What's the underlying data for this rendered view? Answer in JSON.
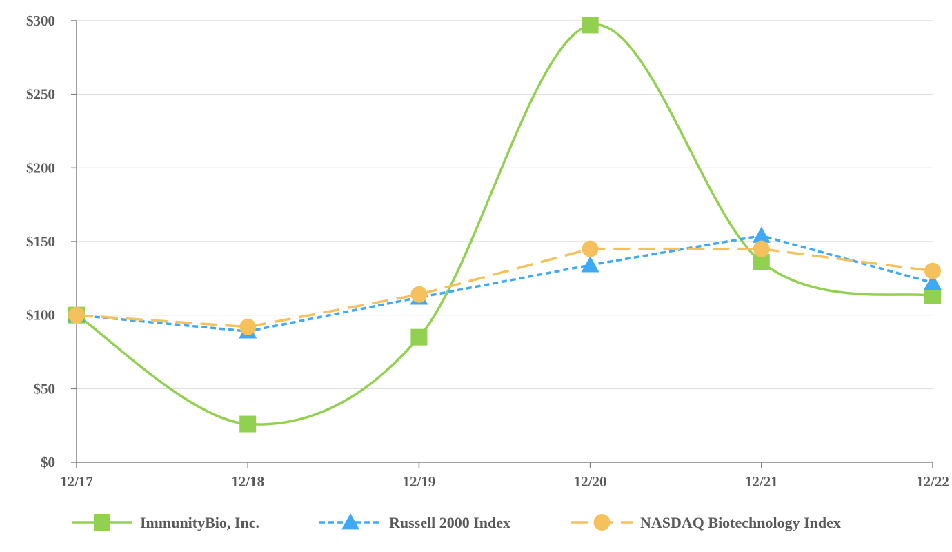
{
  "chart_data": {
    "type": "line",
    "title": "",
    "xlabel": "",
    "ylabel": "",
    "categories": [
      "12/17",
      "12/18",
      "12/19",
      "12/20",
      "12/21",
      "12/22"
    ],
    "y_tick_values": [
      0,
      50,
      100,
      150,
      200,
      250,
      300
    ],
    "y_tick_labels": [
      "$0",
      "$50",
      "$100",
      "$150",
      "$200",
      "$250",
      "$300"
    ],
    "ylim": [
      0,
      300
    ],
    "grid": "horizontal",
    "legend_position": "bottom",
    "series": [
      {
        "name": "ImmunityBio, Inc.",
        "values": [
          100,
          26,
          85,
          297,
          136,
          113
        ],
        "color": "#92d050",
        "line_style": "solid",
        "smooth": true,
        "marker": "square"
      },
      {
        "name": "Russell 2000 Index",
        "values": [
          100,
          89,
          112,
          134,
          154,
          122
        ],
        "color": "#3fa9f5",
        "line_style": "dotted",
        "smooth": false,
        "marker": "triangle"
      },
      {
        "name": "NASDAQ Biotechnology Index",
        "values": [
          100,
          92,
          114,
          145,
          145,
          130
        ],
        "color": "#f5c15c",
        "line_style": "dashed",
        "smooth": false,
        "marker": "circle"
      }
    ]
  }
}
